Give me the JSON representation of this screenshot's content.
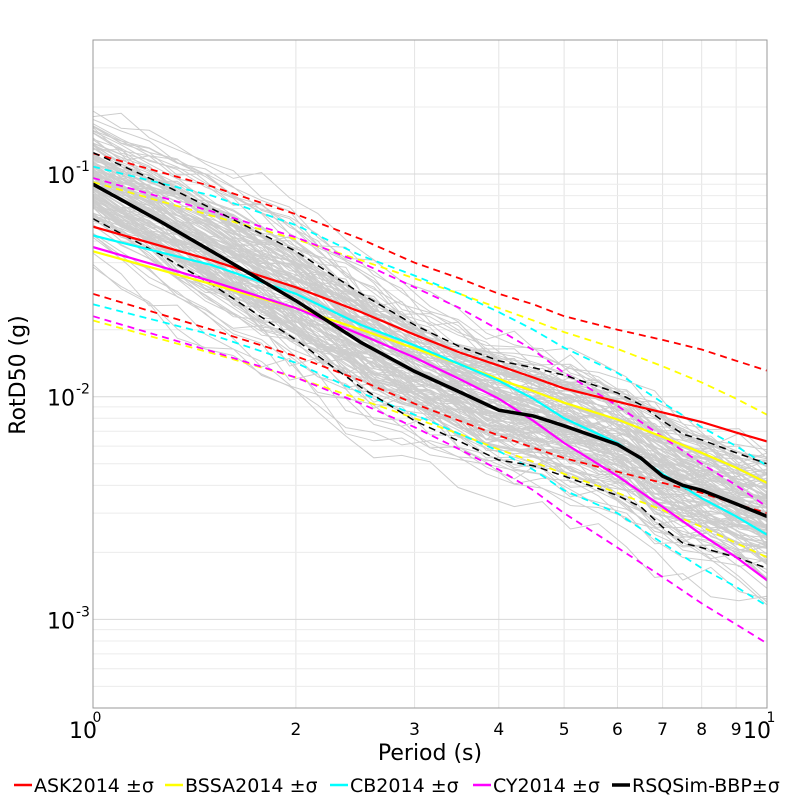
{
  "chart_data": {
    "type": "line",
    "xlabel": "Period (s)",
    "ylabel": "RotD50 (g)",
    "x_scale": "log",
    "y_scale": "log",
    "xlim": [
      1,
      10
    ],
    "ylim": [
      0.0004,
      0.4
    ],
    "grid": true,
    "legend_position": "bottom",
    "x_major_ticks": [
      {
        "base": "10",
        "exp": "0",
        "value": 1
      },
      {
        "base": "10",
        "exp": "1",
        "value": 10
      }
    ],
    "x_minor_ticks": [
      {
        "label": "2",
        "value": 2
      },
      {
        "label": "3",
        "value": 3
      },
      {
        "label": "4",
        "value": 4
      },
      {
        "label": "5",
        "value": 5
      },
      {
        "label": "6",
        "value": 6
      },
      {
        "label": "7",
        "value": 7
      },
      {
        "label": "8",
        "value": 8
      },
      {
        "label": "9",
        "value": 9
      }
    ],
    "y_major_ticks": [
      {
        "base": "10",
        "exp": "-1",
        "value": 0.1
      },
      {
        "base": "10",
        "exp": "-2",
        "value": 0.01
      },
      {
        "base": "10",
        "exp": "-3",
        "value": 0.001
      }
    ],
    "series": [
      {
        "name": "ASK2014 ±σ",
        "color": "#ff0000",
        "x": [
          1,
          1.5,
          2,
          2.5,
          3,
          3.5,
          4,
          4.5,
          5,
          6,
          7,
          8,
          9,
          10
        ],
        "median": [
          0.058,
          0.041,
          0.031,
          0.024,
          0.019,
          0.0158,
          0.0138,
          0.0122,
          0.0109,
          0.0095,
          0.0085,
          0.0077,
          0.0069,
          0.0063
        ],
        "upper": [
          0.124,
          0.088,
          0.066,
          0.051,
          0.04,
          0.034,
          0.029,
          0.026,
          0.023,
          0.02,
          0.018,
          0.0163,
          0.0145,
          0.0131
        ],
        "lower": [
          0.029,
          0.02,
          0.0152,
          0.0118,
          0.0093,
          0.0078,
          0.0067,
          0.0059,
          0.0053,
          0.0046,
          0.0041,
          0.0037,
          0.0033,
          0.003
        ]
      },
      {
        "name": "BSSA2014 ±σ",
        "color": "#ffff00",
        "x": [
          1,
          1.5,
          2,
          2.5,
          3,
          3.5,
          4,
          4.5,
          5,
          6,
          7,
          8,
          9,
          10
        ],
        "median": [
          0.045,
          0.032,
          0.025,
          0.02,
          0.0165,
          0.014,
          0.012,
          0.0106,
          0.0094,
          0.0079,
          0.0066,
          0.0056,
          0.0048,
          0.0041
        ],
        "upper": [
          0.092,
          0.065,
          0.051,
          0.041,
          0.034,
          0.029,
          0.025,
          0.022,
          0.0195,
          0.0164,
          0.0137,
          0.0116,
          0.0098,
          0.0083
        ],
        "lower": [
          0.022,
          0.0157,
          0.0122,
          0.0097,
          0.008,
          0.0068,
          0.0058,
          0.0051,
          0.0045,
          0.0037,
          0.0031,
          0.0026,
          0.0022,
          0.0019
        ]
      },
      {
        "name": "CB2014 ±σ",
        "color": "#00ffff",
        "x": [
          1,
          1.5,
          2,
          2.5,
          3,
          3.5,
          4,
          4.5,
          5,
          6,
          7,
          8,
          9,
          10
        ],
        "median": [
          0.053,
          0.039,
          0.029,
          0.021,
          0.017,
          0.014,
          0.0118,
          0.0098,
          0.008,
          0.0062,
          0.0045,
          0.0035,
          0.0029,
          0.0024
        ],
        "upper": [
          0.108,
          0.08,
          0.059,
          0.043,
          0.035,
          0.029,
          0.024,
          0.02,
          0.0166,
          0.0128,
          0.0094,
          0.0073,
          0.006,
          0.0049
        ],
        "lower": [
          0.026,
          0.019,
          0.0142,
          0.0104,
          0.0083,
          0.0068,
          0.0057,
          0.0047,
          0.0038,
          0.003,
          0.0022,
          0.0017,
          0.0014,
          0.00115
        ]
      },
      {
        "name": "CY2014 ±σ",
        "color": "#ff00ff",
        "x": [
          1,
          1.5,
          2,
          2.5,
          3,
          3.5,
          4,
          4.5,
          5,
          6,
          7,
          8,
          9,
          10
        ],
        "median": [
          0.047,
          0.033,
          0.025,
          0.019,
          0.015,
          0.012,
          0.0098,
          0.0078,
          0.0062,
          0.0044,
          0.0032,
          0.0024,
          0.0019,
          0.0015
        ],
        "upper": [
          0.096,
          0.068,
          0.052,
          0.04,
          0.031,
          0.025,
          0.02,
          0.0162,
          0.0128,
          0.0091,
          0.0066,
          0.005,
          0.004,
          0.0032
        ],
        "lower": [
          0.023,
          0.016,
          0.0122,
          0.0093,
          0.0073,
          0.0058,
          0.0047,
          0.0038,
          0.003,
          0.0021,
          0.00155,
          0.00118,
          0.00095,
          0.00078
        ]
      },
      {
        "name": "RSQSim-BBP±σ",
        "color": "#000000",
        "x": [
          1,
          1.25,
          1.5,
          2,
          2.5,
          3,
          3.5,
          4,
          4.5,
          5,
          6,
          6.5,
          7,
          7.5,
          8,
          9,
          10
        ],
        "median": [
          0.09,
          0.062,
          0.045,
          0.027,
          0.0175,
          0.013,
          0.0105,
          0.0087,
          0.0082,
          0.0074,
          0.0061,
          0.0053,
          0.0044,
          0.004,
          0.0038,
          0.0033,
          0.0029
        ],
        "upper": [
          0.125,
          0.092,
          0.07,
          0.045,
          0.029,
          0.021,
          0.0168,
          0.0145,
          0.0135,
          0.0125,
          0.0104,
          0.0092,
          0.0078,
          0.0068,
          0.0064,
          0.0056,
          0.005
        ],
        "lower": [
          0.063,
          0.044,
          0.032,
          0.018,
          0.011,
          0.0078,
          0.0063,
          0.0052,
          0.0049,
          0.0044,
          0.0036,
          0.0032,
          0.0026,
          0.0022,
          0.0021,
          0.0019,
          0.0017
        ]
      }
    ]
  }
}
